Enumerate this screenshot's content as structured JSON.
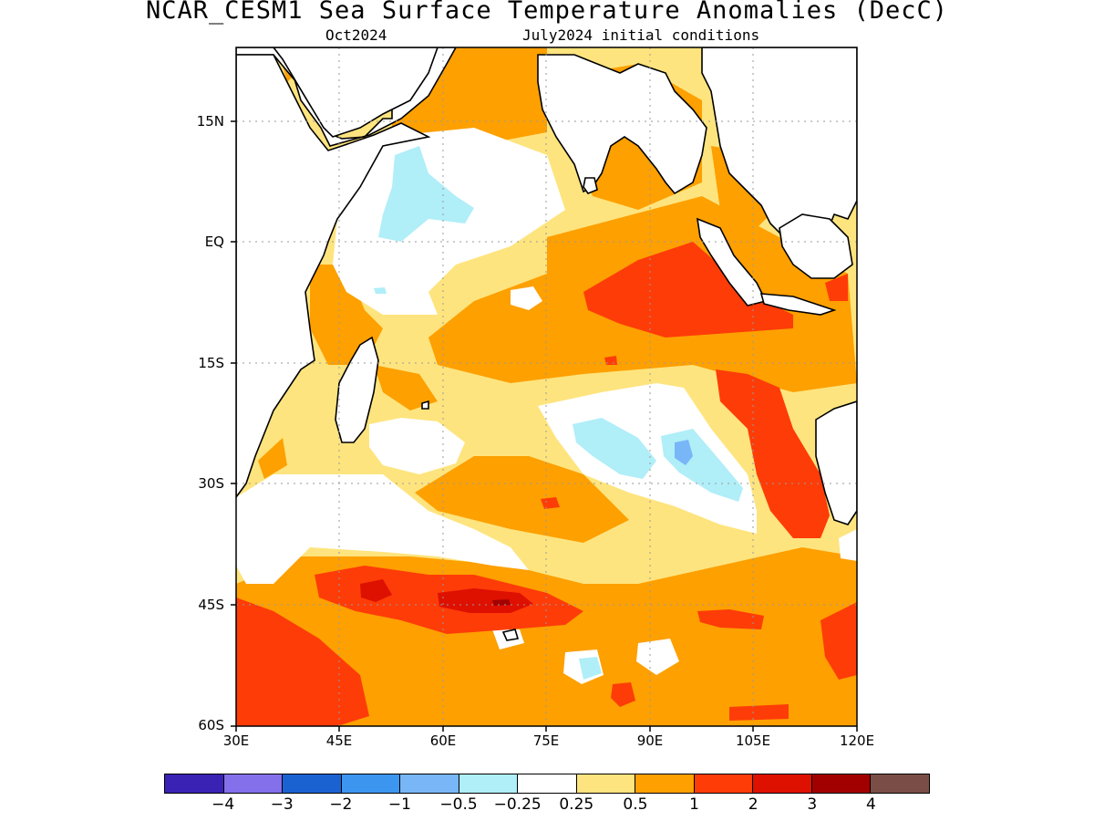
{
  "title": "NCAR_CESM1 Sea Surface Temperature Anomalies (DecC)",
  "subtitle_left": "Oct2024",
  "subtitle_right": "July2024 initial conditions",
  "lat_labels": [
    "15N",
    "EQ",
    "15S",
    "30S",
    "45S",
    "60S"
  ],
  "lon_labels": [
    "30E",
    "45E",
    "60E",
    "75E",
    "90E",
    "105E",
    "120E"
  ],
  "colorbar": {
    "colors": [
      "#3a22b4",
      "#8470ea",
      "#1a62d2",
      "#3c96f0",
      "#78b6f8",
      "#b0eef8",
      "#ffffff",
      "#fee47e",
      "#fda000",
      "#fe3c08",
      "#de1000",
      "#a20000",
      "#7a4e46"
    ],
    "labels": [
      "−4",
      "−3",
      "−2",
      "−1",
      "−0.5",
      "−0.25",
      "0.25",
      "0.5",
      "1",
      "2",
      "3",
      "4"
    ]
  },
  "map": {
    "region": "Indian Ocean",
    "lon_range": [
      30,
      120
    ],
    "lat_range": [
      -60,
      24
    ],
    "grid": true,
    "land_color": "#ffffff",
    "contour_field": "sea surface temperature anomaly",
    "units": "DecC"
  }
}
